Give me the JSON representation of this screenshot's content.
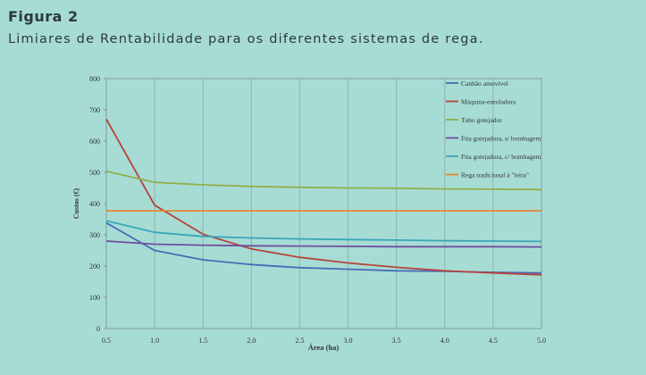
{
  "figure": {
    "label": "Figura 2",
    "title": "Limiares de Rentabilidade para os diferentes sistemas de rega."
  },
  "chart_data": {
    "type": "line",
    "xlabel": "Área (ha)",
    "ylabel": "Custos (€)",
    "xlim": [
      0.5,
      5.0
    ],
    "ylim": [
      0,
      800
    ],
    "x_ticks": [
      "0.5",
      "1.0",
      "1.5",
      "2.0",
      "2.5",
      "3.0",
      "3.5",
      "4.0",
      "4.5",
      "5.0"
    ],
    "y_ticks": [
      "0",
      "100",
      "200",
      "300",
      "400",
      "500",
      "600",
      "700",
      "800"
    ],
    "grid": "vertical",
    "legend_position": "top-right",
    "x": [
      0.5,
      1.0,
      1.5,
      2.0,
      2.5,
      3.0,
      3.5,
      4.0,
      4.5,
      5.0
    ],
    "series": [
      {
        "name": "Canhão amovível",
        "color": "#4a6bb5",
        "values": [
          338,
          250,
          220,
          205,
          195,
          190,
          185,
          183,
          180,
          178
        ]
      },
      {
        "name": "Máquina-enroladora",
        "color": "#b5443a",
        "values": [
          670,
          395,
          302,
          255,
          228,
          210,
          196,
          185,
          178,
          172
        ]
      },
      {
        "name": "Tubo gotejador",
        "color": "#8fb04a",
        "values": [
          503,
          468,
          460,
          455,
          452,
          450,
          449,
          447,
          446,
          445
        ]
      },
      {
        "name": "Fita gotejadora, s/ bombagem",
        "color": "#6f4f9e",
        "values": [
          280,
          270,
          267,
          265,
          264,
          263,
          262,
          262,
          262,
          261
        ]
      },
      {
        "name": "Fita gotejadora, c/ bombagem",
        "color": "#3aa5b9",
        "values": [
          345,
          308,
          295,
          290,
          287,
          285,
          283,
          281,
          280,
          279
        ]
      },
      {
        "name": "Rega tradicional à \"leira\"",
        "color": "#e7852f",
        "values": [
          377,
          377,
          377,
          377,
          377,
          377,
          377,
          377,
          377,
          377
        ]
      }
    ]
  }
}
